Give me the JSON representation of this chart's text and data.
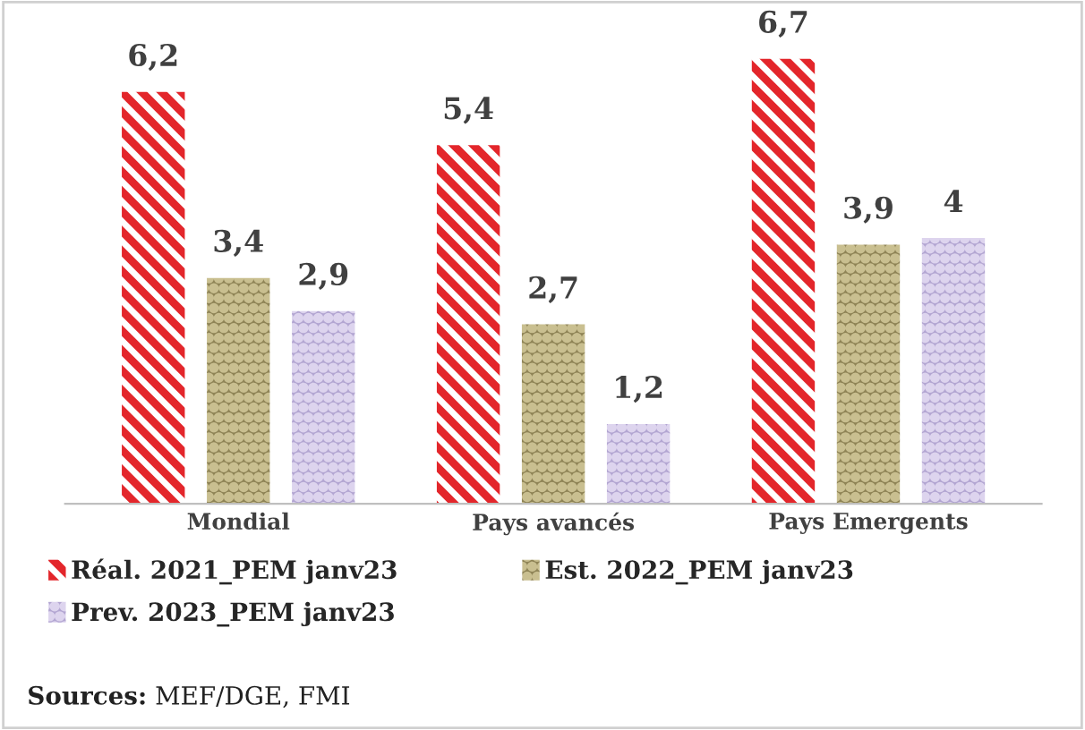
{
  "chart_data": {
    "type": "bar",
    "categories": [
      "Mondial",
      "Pays avancés",
      "Pays Emergents"
    ],
    "series": [
      {
        "name": "Réal. 2021_PEM janv23",
        "color": "#e3262b",
        "values": [
          6.2,
          5.4,
          6.7
        ],
        "value_labels": [
          "6,2",
          "5,4",
          "6,7"
        ]
      },
      {
        "name": "Est. 2022_PEM janv23",
        "color": "#8f8456",
        "values": [
          3.4,
          2.7,
          3.9
        ],
        "value_labels": [
          "3,4",
          "2,7",
          "3,9"
        ]
      },
      {
        "name": "Prev. 2023_PEM janv23",
        "color": "#b3a6d2",
        "values": [
          2.9,
          1.2,
          4
        ],
        "value_labels": [
          "2,9",
          "1,2",
          "4"
        ]
      }
    ],
    "legend": "bottom",
    "grid": false,
    "annotations": [
      "Sources: MEF/DGE, FMI"
    ]
  }
}
